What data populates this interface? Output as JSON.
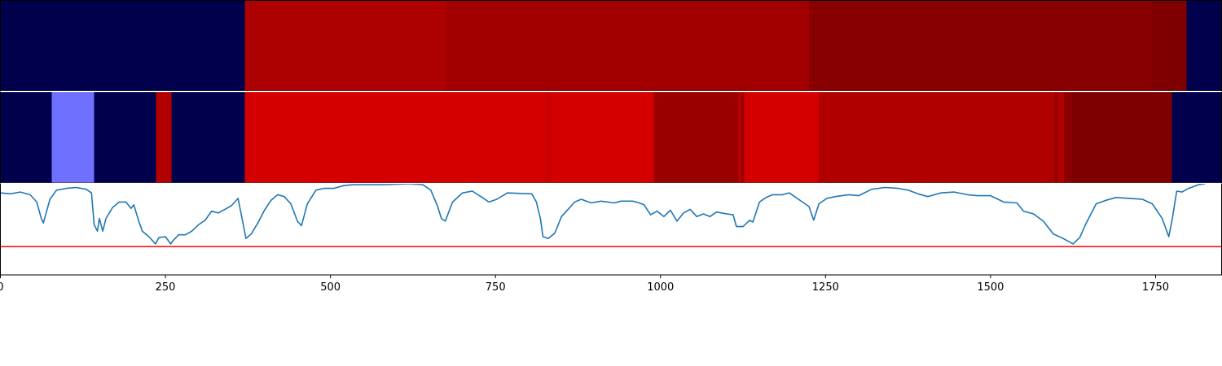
{
  "chart_data": [
    {
      "type": "heatmap",
      "name": "top-band",
      "segments": [
        {
          "x0": 0,
          "x1": 370,
          "color": "#00004c"
        },
        {
          "x0": 370,
          "x1": 675,
          "color": "#ad0000"
        },
        {
          "x0": 675,
          "x1": 1225,
          "color": "#a20000"
        },
        {
          "x0": 1225,
          "x1": 1745,
          "color": "#890000"
        },
        {
          "x0": 1745,
          "x1": 1797,
          "color": "#7e0000"
        },
        {
          "x0": 1797,
          "x1": 1850,
          "color": "#00004c"
        }
      ]
    },
    {
      "type": "heatmap",
      "name": "middle-band",
      "segments": [
        {
          "x0": 0,
          "x1": 78,
          "color": "#00004c"
        },
        {
          "x0": 78,
          "x1": 142,
          "color": "#7070ff"
        },
        {
          "x0": 142,
          "x1": 236,
          "color": "#00004c"
        },
        {
          "x0": 236,
          "x1": 259,
          "color": "#b20000"
        },
        {
          "x0": 259,
          "x1": 370,
          "color": "#00004c"
        },
        {
          "x0": 370,
          "x1": 826,
          "color": "#d40000"
        },
        {
          "x0": 826,
          "x1": 834,
          "color": "#c80000"
        },
        {
          "x0": 834,
          "x1": 990,
          "color": "#d40000"
        },
        {
          "x0": 990,
          "x1": 1118,
          "color": "#9a0000"
        },
        {
          "x0": 1118,
          "x1": 1122,
          "color": "#c00000"
        },
        {
          "x0": 1122,
          "x1": 1127,
          "color": "#9a0000"
        },
        {
          "x0": 1127,
          "x1": 1240,
          "color": "#d40000"
        },
        {
          "x0": 1240,
          "x1": 1597,
          "color": "#b00000"
        },
        {
          "x0": 1597,
          "x1": 1602,
          "color": "#930000"
        },
        {
          "x0": 1602,
          "x1": 1611,
          "color": "#b00000"
        },
        {
          "x0": 1611,
          "x1": 1623,
          "color": "#8c0000"
        },
        {
          "x0": 1623,
          "x1": 1775,
          "color": "#7e0000"
        },
        {
          "x0": 1775,
          "x1": 1850,
          "color": "#00004c"
        }
      ]
    },
    {
      "type": "line",
      "name": "signal",
      "xlim": [
        0,
        1850
      ],
      "ylim": [
        0,
        1
      ],
      "grid": false,
      "line_color": "#1f77b4",
      "threshold": 0.31,
      "threshold_color": "#ff0000",
      "x_ticks": [
        0,
        250,
        500,
        750,
        1000,
        1250,
        1500,
        1750
      ],
      "x_tick_labels": [
        "0",
        "250",
        "500",
        "750",
        "1000",
        "1250",
        "1500",
        "1750"
      ],
      "points": [
        [
          0,
          0.9
        ],
        [
          15,
          0.89
        ],
        [
          30,
          0.91
        ],
        [
          45,
          0.88
        ],
        [
          55,
          0.8
        ],
        [
          62,
          0.62
        ],
        [
          65,
          0.57
        ],
        [
          75,
          0.83
        ],
        [
          85,
          0.93
        ],
        [
          100,
          0.95
        ],
        [
          115,
          0.96
        ],
        [
          130,
          0.94
        ],
        [
          138,
          0.9
        ],
        [
          142,
          0.55
        ],
        [
          147,
          0.48
        ],
        [
          150,
          0.62
        ],
        [
          155,
          0.48
        ],
        [
          160,
          0.62
        ],
        [
          170,
          0.74
        ],
        [
          180,
          0.8
        ],
        [
          190,
          0.8
        ],
        [
          198,
          0.73
        ],
        [
          202,
          0.77
        ],
        [
          210,
          0.58
        ],
        [
          215,
          0.48
        ],
        [
          225,
          0.42
        ],
        [
          235,
          0.34
        ],
        [
          240,
          0.41
        ],
        [
          250,
          0.42
        ],
        [
          258,
          0.34
        ],
        [
          262,
          0.38
        ],
        [
          270,
          0.44
        ],
        [
          280,
          0.44
        ],
        [
          290,
          0.48
        ],
        [
          300,
          0.55
        ],
        [
          310,
          0.6
        ],
        [
          320,
          0.7
        ],
        [
          330,
          0.68
        ],
        [
          340,
          0.72
        ],
        [
          350,
          0.76
        ],
        [
          360,
          0.84
        ],
        [
          366,
          0.62
        ],
        [
          372,
          0.4
        ],
        [
          380,
          0.45
        ],
        [
          390,
          0.57
        ],
        [
          400,
          0.71
        ],
        [
          410,
          0.82
        ],
        [
          420,
          0.88
        ],
        [
          430,
          0.86
        ],
        [
          440,
          0.78
        ],
        [
          450,
          0.59
        ],
        [
          456,
          0.54
        ],
        [
          465,
          0.78
        ],
        [
          478,
          0.93
        ],
        [
          490,
          0.95
        ],
        [
          505,
          0.95
        ],
        [
          520,
          0.98
        ],
        [
          535,
          0.99
        ],
        [
          580,
          0.99
        ],
        [
          620,
          1.0
        ],
        [
          640,
          0.99
        ],
        [
          652,
          0.93
        ],
        [
          662,
          0.76
        ],
        [
          668,
          0.62
        ],
        [
          674,
          0.59
        ],
        [
          685,
          0.8
        ],
        [
          700,
          0.9
        ],
        [
          715,
          0.92
        ],
        [
          730,
          0.85
        ],
        [
          740,
          0.8
        ],
        [
          752,
          0.83
        ],
        [
          768,
          0.9
        ],
        [
          805,
          0.89
        ],
        [
          812,
          0.8
        ],
        [
          818,
          0.62
        ],
        [
          822,
          0.42
        ],
        [
          830,
          0.4
        ],
        [
          840,
          0.46
        ],
        [
          850,
          0.64
        ],
        [
          860,
          0.72
        ],
        [
          870,
          0.8
        ],
        [
          880,
          0.83
        ],
        [
          895,
          0.79
        ],
        [
          910,
          0.81
        ],
        [
          930,
          0.79
        ],
        [
          940,
          0.81
        ],
        [
          958,
          0.81
        ],
        [
          968,
          0.79
        ],
        [
          975,
          0.77
        ],
        [
          985,
          0.66
        ],
        [
          995,
          0.7
        ],
        [
          1005,
          0.64
        ],
        [
          1015,
          0.71
        ],
        [
          1025,
          0.59
        ],
        [
          1035,
          0.68
        ],
        [
          1045,
          0.72
        ],
        [
          1055,
          0.64
        ],
        [
          1065,
          0.67
        ],
        [
          1075,
          0.64
        ],
        [
          1085,
          0.69
        ],
        [
          1100,
          0.67
        ],
        [
          1110,
          0.66
        ],
        [
          1115,
          0.53
        ],
        [
          1125,
          0.53
        ],
        [
          1135,
          0.6
        ],
        [
          1140,
          0.58
        ],
        [
          1150,
          0.8
        ],
        [
          1160,
          0.85
        ],
        [
          1170,
          0.88
        ],
        [
          1185,
          0.88
        ],
        [
          1195,
          0.9
        ],
        [
          1215,
          0.8
        ],
        [
          1225,
          0.75
        ],
        [
          1232,
          0.6
        ],
        [
          1240,
          0.78
        ],
        [
          1252,
          0.84
        ],
        [
          1265,
          0.86
        ],
        [
          1285,
          0.88
        ],
        [
          1300,
          0.87
        ],
        [
          1320,
          0.94
        ],
        [
          1340,
          0.96
        ],
        [
          1360,
          0.95
        ],
        [
          1375,
          0.93
        ],
        [
          1390,
          0.89
        ],
        [
          1405,
          0.86
        ],
        [
          1425,
          0.9
        ],
        [
          1445,
          0.91
        ],
        [
          1465,
          0.88
        ],
        [
          1480,
          0.87
        ],
        [
          1500,
          0.87
        ],
        [
          1520,
          0.8
        ],
        [
          1540,
          0.79
        ],
        [
          1550,
          0.7
        ],
        [
          1565,
          0.67
        ],
        [
          1580,
          0.59
        ],
        [
          1595,
          0.45
        ],
        [
          1610,
          0.4
        ],
        [
          1625,
          0.34
        ],
        [
          1635,
          0.41
        ],
        [
          1645,
          0.57
        ],
        [
          1660,
          0.78
        ],
        [
          1675,
          0.82
        ],
        [
          1690,
          0.85
        ],
        [
          1710,
          0.84
        ],
        [
          1730,
          0.83
        ],
        [
          1745,
          0.78
        ],
        [
          1760,
          0.62
        ],
        [
          1770,
          0.42
        ],
        [
          1775,
          0.6
        ],
        [
          1782,
          0.92
        ],
        [
          1790,
          0.91
        ],
        [
          1800,
          0.95
        ],
        [
          1815,
          0.99
        ],
        [
          1825,
          1.0
        ]
      ]
    }
  ]
}
